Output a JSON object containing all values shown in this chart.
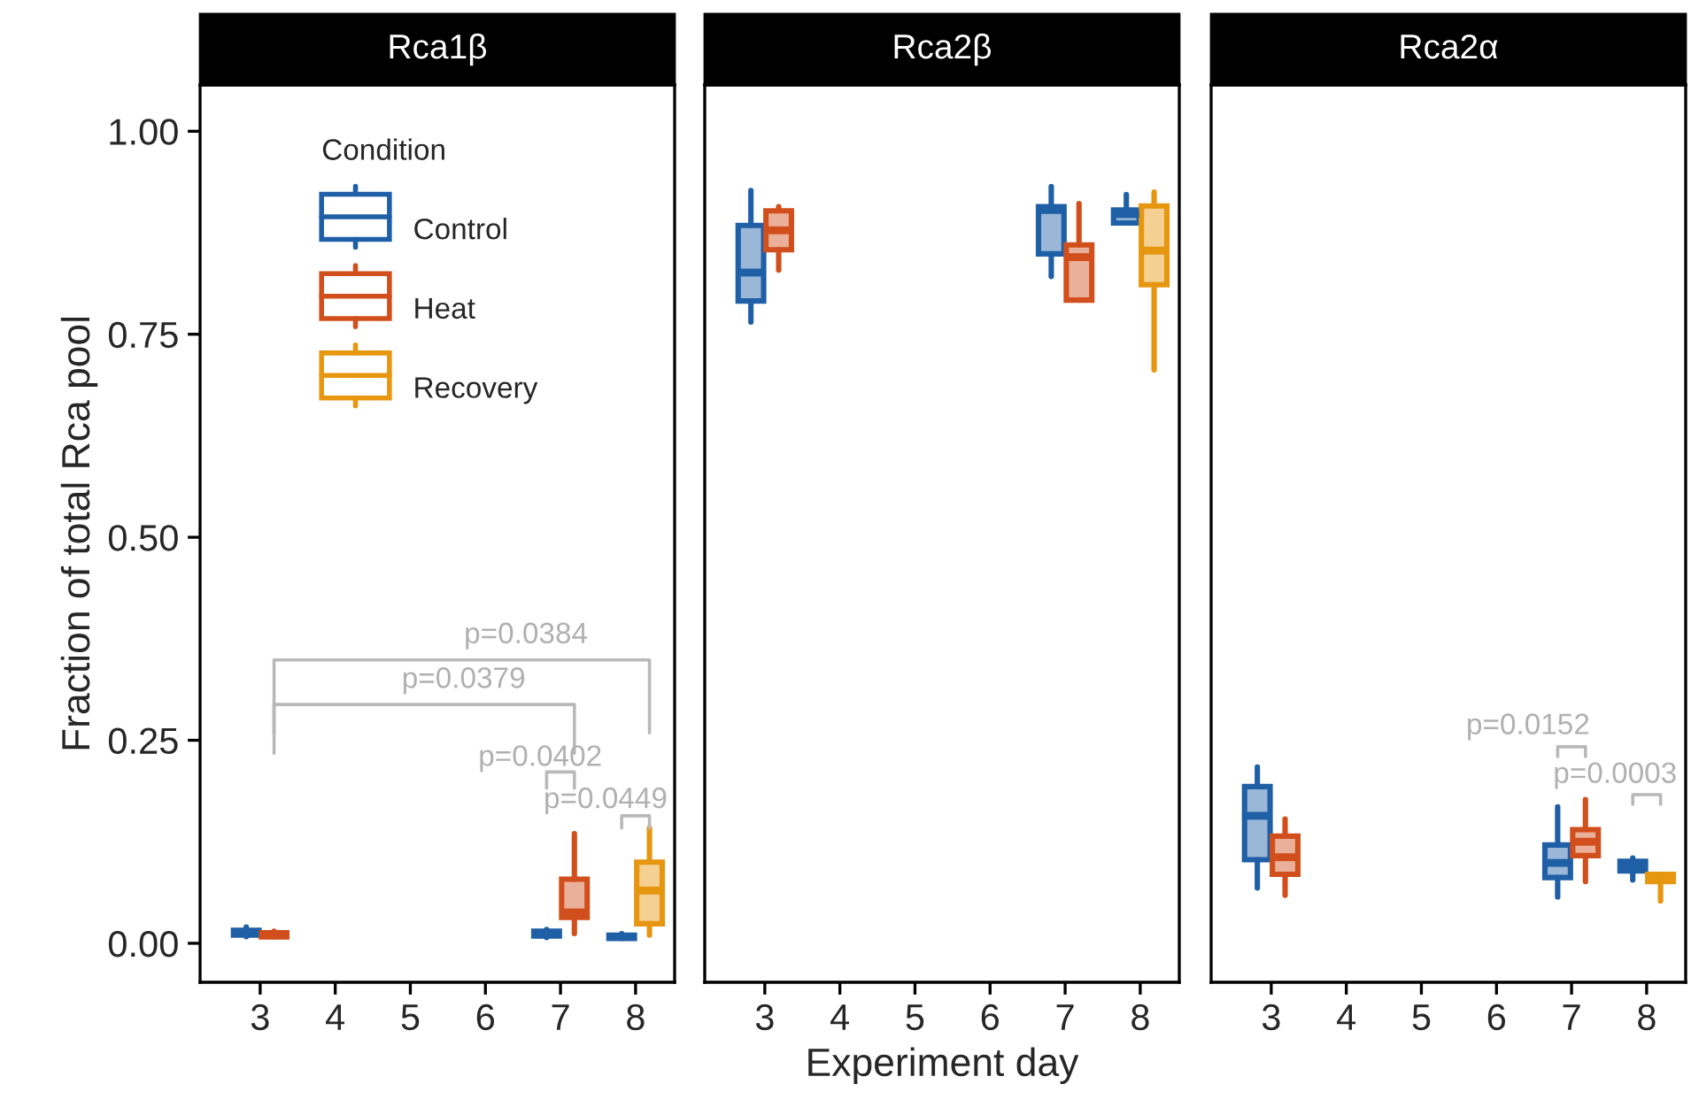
{
  "chart_data": [
    {
      "type": "box",
      "title": "Rca1β",
      "ylabel": "Fraction of total Rca pool",
      "categories": [
        "3",
        "4",
        "5",
        "6",
        "7",
        "8"
      ],
      "ylim": [
        -0.048,
        1.057
      ],
      "yticks": [
        {
          "value": 0,
          "label": "0.00"
        },
        {
          "value": 0.25,
          "label": "0.25"
        },
        {
          "value": 0.5,
          "label": "0.50"
        },
        {
          "value": 0.75,
          "label": "0.75"
        },
        {
          "value": 1,
          "label": "1.00"
        }
      ],
      "legend": "top left",
      "legend_title": "Condition",
      "grid": false,
      "series": [
        {
          "name": "Control",
          "color": "#1f5fa6",
          "boxes": [
            {
              "low": 0.008,
              "q1": 0.01,
              "median": 0.013,
              "q3": 0.016,
              "high": 0.02
            },
            null,
            null,
            null,
            {
              "low": 0.007,
              "q1": 0.009,
              "median": 0.011,
              "q3": 0.015,
              "high": 0.017
            },
            {
              "low": 0.006,
              "q1": 0.006,
              "median": 0.008,
              "q3": 0.01,
              "high": 0.012
            }
          ]
        },
        {
          "name": "Heat",
          "color": "#d14f1c",
          "boxes": [
            {
              "low": 0.008,
              "q1": 0.008,
              "median": 0.01,
              "q3": 0.013,
              "high": 0.015
            },
            null,
            null,
            null,
            {
              "low": 0.012,
              "q1": 0.032,
              "median": 0.038,
              "q3": 0.079,
              "high": 0.135
            },
            null
          ]
        },
        {
          "name": "Recovery",
          "color": "#e6960f",
          "boxes": [
            null,
            null,
            null,
            null,
            null,
            {
              "low": 0.01,
              "q1": 0.024,
              "median": 0.065,
              "q3": 0.1,
              "high": 0.142
            }
          ]
        }
      ],
      "annotations": [
        "p=0.0384",
        "p=0.0379",
        "p=0.0402",
        "p=0.0449"
      ]
    },
    {
      "type": "box",
      "title": "Rca2β",
      "xlabel": "Experiment day",
      "categories": [
        "3",
        "4",
        "5",
        "6",
        "7",
        "8"
      ],
      "ylim": [
        -0.048,
        1.057
      ],
      "tick_labels": "x",
      "grid": false,
      "series": [
        {
          "color": "#1f5fa6",
          "boxes": [
            {
              "low": 0.765,
              "q1": 0.791,
              "median": 0.826,
              "q3": 0.884,
              "high": 0.927
            },
            null,
            null,
            null,
            {
              "low": 0.821,
              "q1": 0.849,
              "median": 0.903,
              "q3": 0.907,
              "high": 0.932
            },
            {
              "low": 0.887,
              "q1": 0.887,
              "median": 0.898,
              "q3": 0.903,
              "high": 0.922
            }
          ]
        },
        {
          "color": "#d14f1c",
          "boxes": [
            {
              "low": 0.829,
              "q1": 0.854,
              "median": 0.878,
              "q3": 0.902,
              "high": 0.907
            },
            null,
            null,
            null,
            {
              "low": 0.792,
              "q1": 0.792,
              "median": 0.845,
              "q3": 0.86,
              "high": 0.911
            },
            null
          ]
        },
        {
          "color": "#e6960f",
          "boxes": [
            null,
            null,
            null,
            null,
            null,
            {
              "low": 0.706,
              "q1": 0.811,
              "median": 0.853,
              "q3": 0.908,
              "high": 0.925
            }
          ]
        }
      ]
    },
    {
      "type": "box",
      "title": "Rca2α",
      "categories": [
        "3",
        "4",
        "5",
        "6",
        "7",
        "8"
      ],
      "ylim": [
        -0.048,
        1.057
      ],
      "tick_labels": "x",
      "grid": false,
      "series": [
        {
          "color": "#1f5fa6",
          "boxes": [
            {
              "low": 0.068,
              "q1": 0.103,
              "median": 0.157,
              "q3": 0.193,
              "high": 0.217
            },
            null,
            null,
            null,
            {
              "low": 0.057,
              "q1": 0.081,
              "median": 0.099,
              "q3": 0.121,
              "high": 0.168
            },
            {
              "low": 0.078,
              "q1": 0.089,
              "median": 0.094,
              "q3": 0.101,
              "high": 0.105
            }
          ]
        },
        {
          "color": "#d14f1c",
          "boxes": [
            {
              "low": 0.059,
              "q1": 0.085,
              "median": 0.106,
              "q3": 0.132,
              "high": 0.153
            },
            null,
            null,
            null,
            {
              "low": 0.076,
              "q1": 0.108,
              "median": 0.125,
              "q3": 0.14,
              "high": 0.177
            },
            null
          ]
        },
        {
          "color": "#e6960f",
          "boxes": [
            null,
            null,
            null,
            null,
            null,
            {
              "low": 0.052,
              "q1": 0.076,
              "median": 0.08,
              "q3": 0.085,
              "high": 0.085
            }
          ]
        }
      ],
      "annotations": [
        "p=0.0152",
        "p=0.0003"
      ]
    }
  ]
}
